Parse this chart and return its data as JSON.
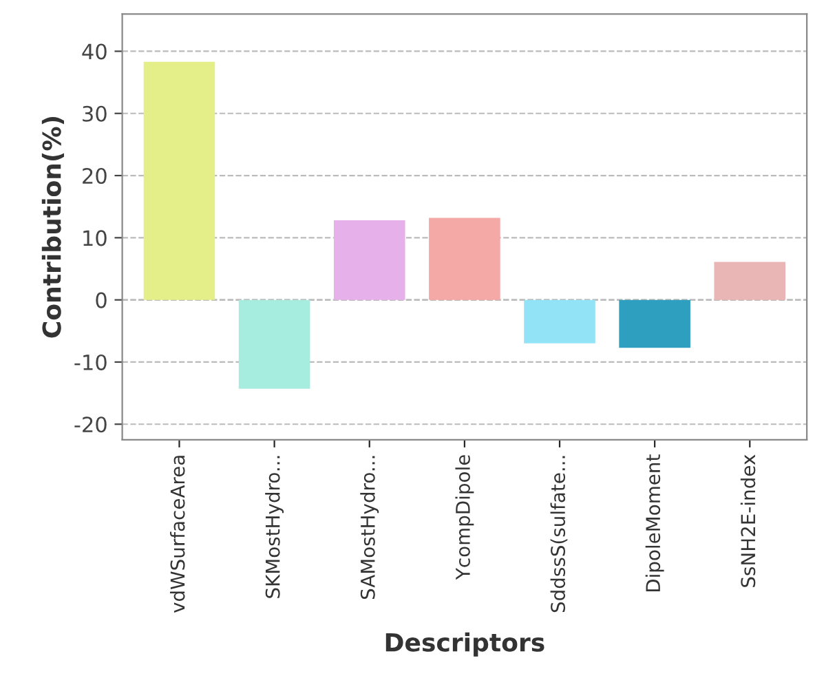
{
  "chart_data": {
    "type": "bar",
    "xlabel": "Descriptors",
    "ylabel": "Contribution(%)",
    "categories": [
      "vdWSurfaceArea",
      "SKMostHydro...",
      "SAMostHydro...",
      "YcompDipole",
      "SddssS(sulfate...",
      "DipoleMoment",
      "SsNH2E-index"
    ],
    "values": [
      38.3,
      -14.3,
      12.8,
      13.2,
      -7.0,
      -7.7,
      6.1
    ],
    "colors": [
      "#e4ef8a",
      "#a6ecdf",
      "#e6b0ea",
      "#f5a9a6",
      "#93e3f7",
      "#2f9fc0",
      "#eab5b5"
    ],
    "ylim": [
      -22.5,
      46
    ],
    "yticks": [
      -20,
      -10,
      0,
      10,
      20,
      30,
      40
    ],
    "grid": "y",
    "legend": false
  }
}
